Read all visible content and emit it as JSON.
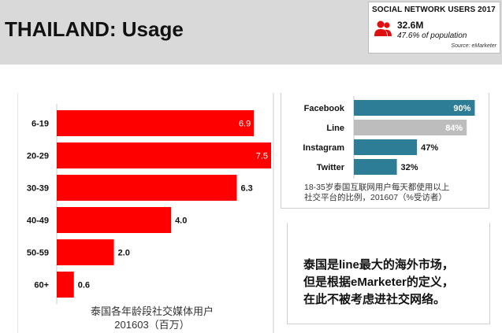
{
  "page": {
    "title": "THAILAND: Usage"
  },
  "users_box": {
    "title": "SOCIAL NETWORK USERS 2017",
    "count": "32.6M",
    "pct": "47.6% of population",
    "source": "Source: eMarketer",
    "icon": "people-icon",
    "icon_color": "#e01010"
  },
  "chart_data": [
    {
      "type": "bar",
      "orientation": "horizontal",
      "categories": [
        "6-19",
        "20-29",
        "30-39",
        "40-49",
        "50-59",
        "60+"
      ],
      "values": [
        6.9,
        7.5,
        6.3,
        4.0,
        2.0,
        0.6
      ],
      "value_labels": [
        "6.9",
        "7.5",
        "6.3",
        "4.0",
        "2.0",
        "0.6"
      ],
      "xlim": [
        0,
        7.5
      ],
      "color": "#ff0000",
      "grid": false,
      "caption_line1": "泰国各年龄段社交媒体用户",
      "caption_line2": "201603（百万）"
    },
    {
      "type": "bar",
      "orientation": "horizontal",
      "categories": [
        "Facebook",
        "Line",
        "Instagram",
        "Twitter"
      ],
      "values": [
        90,
        84,
        47,
        32
      ],
      "value_labels": [
        "90%",
        "84%",
        "47%",
        "32%"
      ],
      "xlim": [
        0,
        100
      ],
      "colors": [
        "#2e7d96",
        "#bdbdbd",
        "#2e7d96",
        "#2e7d96"
      ],
      "grid": false,
      "caption_line1": "18-35岁泰国互联网用户每天都使用以上",
      "caption_line2": "社交平台的比例，201607（%受访者）"
    }
  ],
  "note": {
    "line1": "泰国是line最大的海外市场，",
    "line2": "但是根据eMarketer的定义，",
    "line3": "在此不被考虑进社交网络。"
  }
}
